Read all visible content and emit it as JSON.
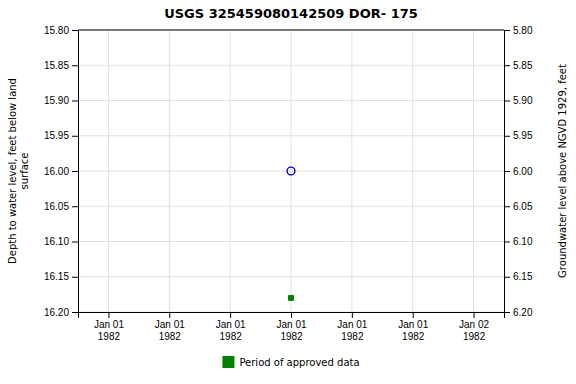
{
  "chart_data": {
    "type": "scatter",
    "title": "USGS 325459080142509 DOR- 175",
    "y_label": "Depth to water level, feet below land\nsurface",
    "y2_label": "Groundwater level above NGVD 1929, feet",
    "categories": [
      "Jan 01\n1982",
      "Jan 01\n1982",
      "Jan 01\n1982",
      "Jan 01\n1982",
      "Jan 01\n1982",
      "Jan 01\n1982",
      "Jan 02\n1982"
    ],
    "series": [
      {
        "values": [
          null,
          null,
          null,
          16.0,
          null,
          null,
          null
        ],
        "color": "#0000cc",
        "marker": "circle"
      },
      {
        "name": "Period of approved data",
        "values": [
          null,
          null,
          null,
          16.18,
          null,
          null,
          null
        ],
        "color": "#008000",
        "marker": "square"
      }
    ],
    "ylim": [
      16.2,
      15.8
    ],
    "yticks": [
      {
        "value": 15.8,
        "label": "15.80"
      },
      {
        "value": 15.85,
        "label": "15.85"
      },
      {
        "value": 15.9,
        "label": "15.90"
      },
      {
        "value": 15.95,
        "label": "15.95"
      },
      {
        "value": 16.0,
        "label": "16.00"
      },
      {
        "value": 16.05,
        "label": "16.05"
      },
      {
        "value": 16.1,
        "label": "16.10"
      },
      {
        "value": 16.15,
        "label": "16.15"
      },
      {
        "value": 16.2,
        "label": "16.20"
      }
    ],
    "y2lim": [
      6.2,
      5.8
    ],
    "y2ticks": [
      {
        "value": 6.2,
        "label": "6.20"
      },
      {
        "value": 6.15,
        "label": "6.15"
      },
      {
        "value": 6.1,
        "label": "6.10"
      },
      {
        "value": 6.05,
        "label": "6.05"
      },
      {
        "value": 6.0,
        "label": "6.00"
      },
      {
        "value": 5.95,
        "label": "5.95"
      },
      {
        "value": 5.9,
        "label": "5.90"
      },
      {
        "value": 5.85,
        "label": "5.85"
      },
      {
        "value": 5.8,
        "label": "5.80"
      }
    ],
    "grid": true,
    "legend": "bottom"
  }
}
